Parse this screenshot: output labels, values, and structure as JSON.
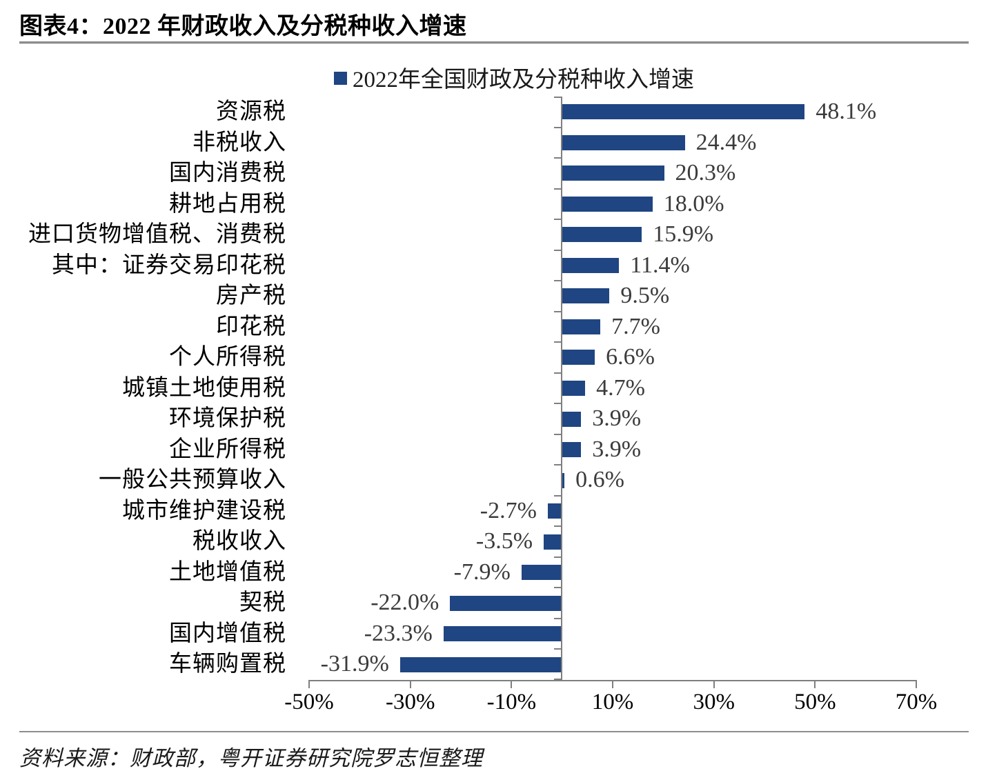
{
  "page": {
    "title": "图表4：2022 年财政收入及分税种收入增速",
    "source": "资料来源：财政部，粤开证券研究院罗志恒整理"
  },
  "chart_data": {
    "type": "bar",
    "orientation": "horizontal",
    "title": "2022年全国财政及分税种收入增速",
    "legend": "2022年全国财政及分税种收入增速",
    "legend_position": "top-center",
    "categories": [
      "资源税",
      "非税收入",
      "国内消费税",
      "耕地占用税",
      "进口货物增值税、消费税",
      "其中：证券交易印花税",
      "房产税",
      "印花税",
      "个人所得税",
      "城镇土地使用税",
      "环境保护税",
      "企业所得税",
      "一般公共预算收入",
      "城市维护建设税",
      "税收收入",
      "土地增值税",
      "契税",
      "国内增值税",
      "车辆购置税"
    ],
    "values": [
      48.1,
      24.4,
      20.3,
      18.0,
      15.9,
      11.4,
      9.5,
      7.7,
      6.6,
      4.7,
      3.9,
      3.9,
      0.6,
      -2.7,
      -3.5,
      -7.9,
      -22.0,
      -23.3,
      -31.9
    ],
    "value_labels": [
      "48.1%",
      "24.4%",
      "20.3%",
      "18.0%",
      "15.9%",
      "11.4%",
      "9.5%",
      "7.7%",
      "6.6%",
      "4.7%",
      "3.9%",
      "3.9%",
      "0.6%",
      "-2.7%",
      "-3.5%",
      "-7.9%",
      "-22.0%",
      "-23.3%",
      "-31.9%"
    ],
    "xlabel": "",
    "ylabel": "",
    "xlim": [
      -50,
      70
    ],
    "x_ticks": [
      -50,
      -30,
      -10,
      10,
      30,
      50,
      70
    ],
    "x_tick_labels": [
      "-50%",
      "-30%",
      "-10%",
      "10%",
      "30%",
      "50%",
      "70%"
    ],
    "grid": false,
    "bar_color": "#1F4582",
    "axis_color": "#7f7f7f",
    "value_label_color": "#3b3b3b"
  }
}
